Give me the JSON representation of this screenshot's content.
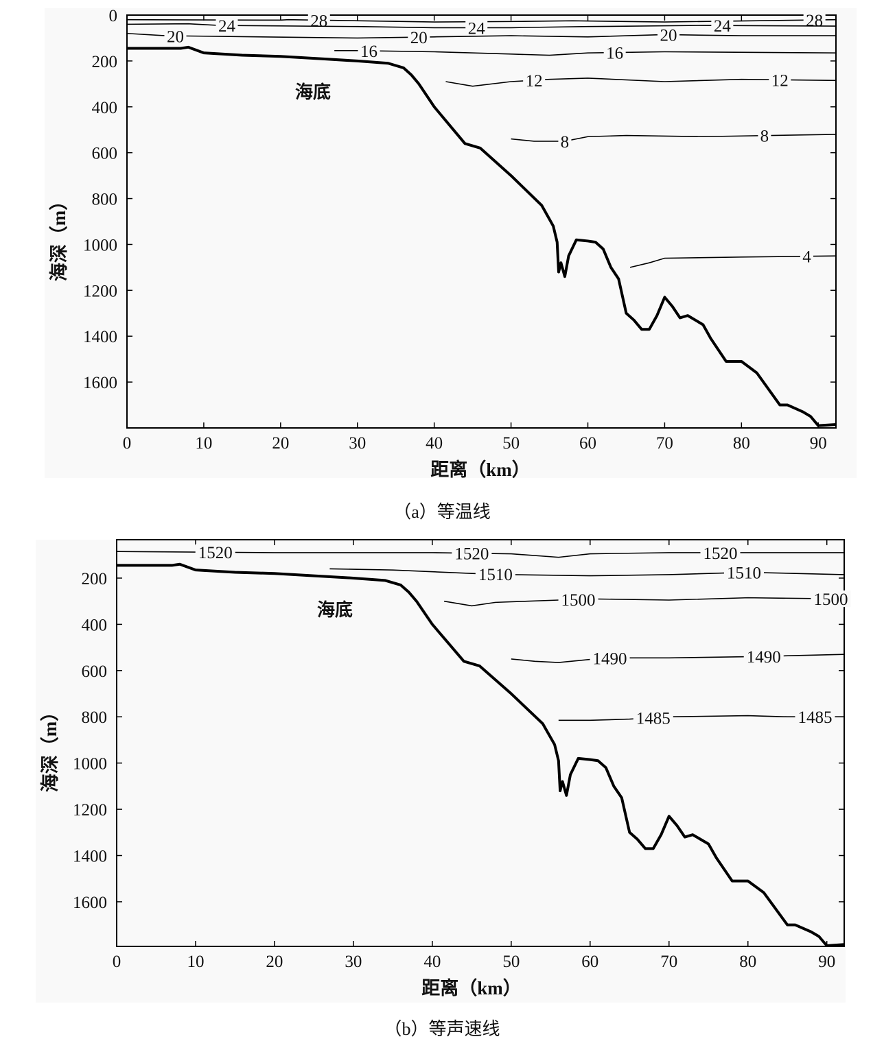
{
  "chart_data": [
    {
      "type": "line",
      "title": "",
      "caption": "（a）等温线",
      "xlabel": "距离（km）",
      "ylabel": "海深（m）",
      "xlim": [
        0,
        92.3
      ],
      "ylim": [
        1800,
        0
      ],
      "xticks": [
        0,
        10,
        20,
        30,
        40,
        50,
        60,
        70,
        80,
        90
      ],
      "yticks": [
        0,
        200,
        400,
        600,
        800,
        1000,
        1200,
        1400,
        1600
      ],
      "seabed_label": "海底",
      "seabed": {
        "x": [
          0,
          7,
          8,
          10,
          15,
          20,
          25,
          30,
          34,
          36,
          37,
          38,
          40,
          42,
          44,
          46,
          50,
          54,
          55.5,
          56,
          56.2,
          56.5,
          57,
          57.5,
          58.5,
          60,
          61,
          62,
          63,
          64,
          65,
          66,
          67,
          68,
          69,
          70,
          71,
          72,
          73,
          75,
          76,
          78,
          80,
          82,
          85,
          86,
          88,
          89,
          90,
          92.3
        ],
        "y": [
          145,
          145,
          140,
          165,
          175,
          180,
          190,
          200,
          210,
          230,
          260,
          300,
          400,
          480,
          560,
          580,
          700,
          830,
          920,
          990,
          1120,
          1080,
          1140,
          1050,
          980,
          985,
          990,
          1020,
          1100,
          1150,
          1300,
          1330,
          1370,
          1370,
          1310,
          1230,
          1270,
          1320,
          1310,
          1350,
          1410,
          1510,
          1510,
          1560,
          1700,
          1700,
          1730,
          1750,
          1790,
          1785
        ]
      },
      "contours": [
        {
          "level": "28",
          "x": [
            0,
            20,
            21,
            40,
            50,
            58,
            70,
            92.3
          ],
          "y": [
            20,
            22,
            20,
            30,
            28,
            25,
            30,
            20
          ],
          "labels": [
            25,
            89.5
          ]
        },
        {
          "level": "24",
          "x": [
            0,
            8,
            12,
            30,
            40,
            50,
            60,
            75,
            92.3
          ],
          "y": [
            40,
            38,
            45,
            50,
            55,
            55,
            50,
            45,
            48
          ],
          "labels": [
            13,
            45.5,
            77.5
          ]
        },
        {
          "level": "20",
          "x": [
            0,
            5,
            30,
            40,
            50,
            60,
            70,
            80,
            92.3
          ],
          "y": [
            80,
            90,
            100,
            95,
            90,
            95,
            85,
            90,
            90
          ],
          "labels": [
            6.3,
            38,
            70.5
          ]
        },
        {
          "level": "16",
          "x": [
            27,
            30,
            40,
            50,
            55,
            60,
            70,
            92.3
          ],
          "y": [
            155,
            155,
            160,
            170,
            175,
            165,
            160,
            165
          ],
          "labels": [
            31.5,
            63.5
          ]
        },
        {
          "level": "12",
          "x": [
            41.5,
            45,
            50,
            55,
            60,
            70,
            80,
            92.3
          ],
          "y": [
            290,
            310,
            290,
            280,
            275,
            290,
            280,
            285
          ],
          "labels": [
            53,
            85
          ]
        },
        {
          "level": "8",
          "x": [
            50,
            53,
            57,
            60,
            65,
            75,
            92.3
          ],
          "y": [
            540,
            550,
            550,
            530,
            525,
            530,
            520
          ],
          "labels": [
            57,
            83
          ]
        },
        {
          "level": "4",
          "x": [
            65.5,
            68,
            70,
            80,
            92.3
          ],
          "y": [
            1100,
            1080,
            1060,
            1055,
            1050
          ],
          "labels": [
            88.5
          ]
        }
      ]
    },
    {
      "type": "line",
      "title": "",
      "caption": "（b）等声速线",
      "xlabel": "距离（km）",
      "ylabel": "海深（m）",
      "xlim": [
        0,
        92.2
      ],
      "ylim": [
        1793,
        34
      ],
      "xticks": [
        0,
        10,
        20,
        30,
        40,
        50,
        60,
        70,
        80,
        90
      ],
      "yticks": [
        200,
        400,
        600,
        800,
        1000,
        1200,
        1400,
        1600
      ],
      "seabed_label": "海底",
      "seabed": {
        "x": [
          0,
          7,
          8,
          10,
          15,
          20,
          25,
          30,
          34,
          36,
          37,
          38,
          40,
          42,
          44,
          46,
          50,
          54,
          55.5,
          56,
          56.2,
          56.5,
          57,
          57.5,
          58.5,
          60,
          61,
          62,
          63,
          64,
          65,
          66,
          67,
          68,
          69,
          70,
          71,
          72,
          73,
          75,
          76,
          78,
          80,
          82,
          85,
          86,
          88,
          89,
          90,
          92.2
        ],
        "y": [
          145,
          145,
          140,
          165,
          175,
          180,
          190,
          200,
          210,
          230,
          260,
          300,
          400,
          480,
          560,
          580,
          700,
          830,
          920,
          990,
          1120,
          1080,
          1140,
          1050,
          980,
          985,
          990,
          1020,
          1100,
          1150,
          1300,
          1330,
          1370,
          1370,
          1310,
          1230,
          1270,
          1320,
          1310,
          1350,
          1410,
          1510,
          1510,
          1560,
          1700,
          1700,
          1730,
          1750,
          1790,
          1785
        ]
      },
      "contours": [
        {
          "level": "1520",
          "x": [
            0,
            20,
            40,
            50,
            56,
            60,
            70,
            92.2
          ],
          "y": [
            85,
            90,
            90,
            95,
            110,
            95,
            90,
            90
          ],
          "labels": [
            12.5,
            45,
            76.5
          ]
        },
        {
          "level": "1510",
          "x": [
            27,
            35,
            45,
            50,
            60,
            70,
            80,
            92.2
          ],
          "y": [
            160,
            165,
            180,
            185,
            190,
            185,
            175,
            185
          ],
          "labels": [
            48,
            79.5
          ]
        },
        {
          "level": "1500",
          "x": [
            41.5,
            45,
            48,
            52,
            56,
            60,
            70,
            80,
            92.2
          ],
          "y": [
            300,
            320,
            305,
            300,
            295,
            290,
            295,
            285,
            290
          ],
          "labels": [
            58.5,
            90.5
          ]
        },
        {
          "level": "1490",
          "x": [
            50,
            53,
            56,
            59,
            62,
            70,
            80,
            92.2
          ],
          "y": [
            550,
            560,
            565,
            555,
            545,
            545,
            540,
            530
          ],
          "labels": [
            62.5,
            82
          ]
        },
        {
          "level": "1485",
          "x": [
            56,
            60,
            65,
            70,
            80,
            85,
            92.2
          ],
          "y": [
            815,
            815,
            810,
            800,
            795,
            800,
            800
          ],
          "labels": [
            68,
            88.5
          ]
        }
      ]
    }
  ]
}
